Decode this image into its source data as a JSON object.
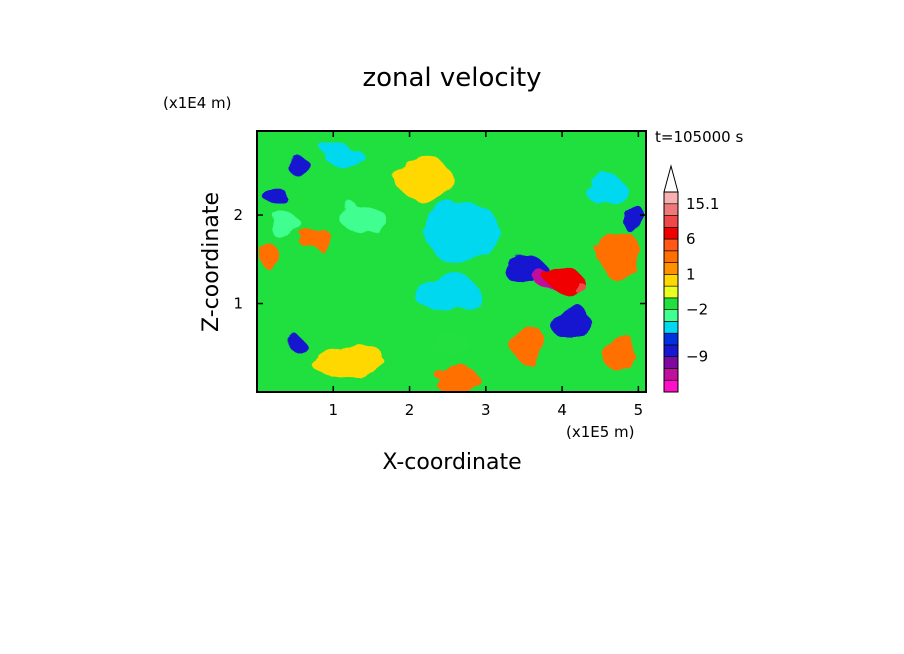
{
  "chart_data": {
    "type": "heatmap",
    "title": "zonal velocity",
    "xlabel": "X-coordinate",
    "ylabel": "Z-coordinate",
    "x_unit": "(x1E5 m)",
    "y_unit": "(x1E4 m)",
    "time_label": "t=105000 s",
    "xlim": [
      0.0,
      5.1
    ],
    "ylim": [
      0.0,
      2.95
    ],
    "x_ticks": [
      1,
      2,
      3,
      4,
      5
    ],
    "y_ticks": [
      1,
      2
    ],
    "x_tick_labels": [
      "1",
      "2",
      "3",
      "4",
      "5"
    ],
    "y_tick_labels": [
      "1",
      "2"
    ],
    "colorbar": {
      "colors": [
        "#ff10c8",
        "#c0109e",
        "#7c0aa0",
        "#1818d0",
        "#0030e0",
        "#00d8f0",
        "#40ff90",
        "#20e040",
        "#e8ff20",
        "#ffd800",
        "#ff9000",
        "#ff7000",
        "#ff5818",
        "#f00000",
        "#f04848",
        "#f07878",
        "#f8b0b0"
      ],
      "labels": [
        "15.1",
        "6",
        "1",
        "−2",
        "−9"
      ],
      "label_values": [
        15.1,
        6,
        1,
        -2,
        -9
      ],
      "extend": "max"
    },
    "features": [
      {
        "x": 3.55,
        "z": 1.35,
        "rx": 0.28,
        "rz": 0.16,
        "level": 3
      },
      {
        "x": 3.8,
        "z": 1.25,
        "rx": 0.12,
        "rz": 0.1,
        "level": 1
      },
      {
        "x": 4.0,
        "z": 1.3,
        "rx": 0.22,
        "rz": 0.14,
        "level": 13
      },
      {
        "x": 4.15,
        "z": 1.25,
        "rx": 0.08,
        "rz": 0.06,
        "level": 14
      },
      {
        "x": 4.1,
        "z": 0.8,
        "rx": 0.25,
        "rz": 0.22,
        "level": 3
      },
      {
        "x": 3.55,
        "z": 0.55,
        "rx": 0.22,
        "rz": 0.22,
        "level": 11
      },
      {
        "x": 0.2,
        "z": 2.25,
        "rx": 0.15,
        "rz": 0.1,
        "level": 3
      },
      {
        "x": 0.55,
        "z": 2.55,
        "rx": 0.15,
        "rz": 0.1,
        "level": 3
      },
      {
        "x": 4.95,
        "z": 1.95,
        "rx": 0.2,
        "rz": 0.12,
        "level": 3
      },
      {
        "x": 0.18,
        "z": 1.52,
        "rx": 0.15,
        "rz": 0.12,
        "level": 11
      },
      {
        "x": 0.8,
        "z": 1.7,
        "rx": 0.2,
        "rz": 0.15,
        "level": 11
      },
      {
        "x": 4.75,
        "z": 1.55,
        "rx": 0.25,
        "rz": 0.3,
        "level": 11
      },
      {
        "x": 2.7,
        "z": 1.8,
        "rx": 0.5,
        "rz": 0.35,
        "level": 5
      },
      {
        "x": 2.5,
        "z": 1.1,
        "rx": 0.4,
        "rz": 0.25,
        "level": 5
      },
      {
        "x": 0.45,
        "z": 0.6,
        "rx": 0.1,
        "rz": 0.08,
        "level": 3
      },
      {
        "x": 4.75,
        "z": 0.45,
        "rx": 0.25,
        "rz": 0.2,
        "level": 11
      },
      {
        "x": 2.6,
        "z": 0.15,
        "rx": 0.3,
        "rz": 0.15,
        "level": 11
      },
      {
        "x": 1.2,
        "z": 0.35,
        "rx": 0.5,
        "rz": 0.2,
        "level": 9
      },
      {
        "x": 2.2,
        "z": 2.4,
        "rx": 0.35,
        "rz": 0.25,
        "level": 9
      },
      {
        "x": 0.4,
        "z": 1.85,
        "rx": 0.2,
        "rz": 0.15,
        "level": 6
      },
      {
        "x": 1.4,
        "z": 1.95,
        "rx": 0.3,
        "rz": 0.15,
        "level": 6
      },
      {
        "x": 4.55,
        "z": 2.3,
        "rx": 0.25,
        "rz": 0.18,
        "level": 5
      },
      {
        "x": 1.1,
        "z": 2.7,
        "rx": 0.25,
        "rz": 0.12,
        "level": 5
      },
      {
        "x": 2.5,
        "z": 0.55,
        "rx": 0.25,
        "rz": 0.12,
        "level": 7
      }
    ]
  }
}
